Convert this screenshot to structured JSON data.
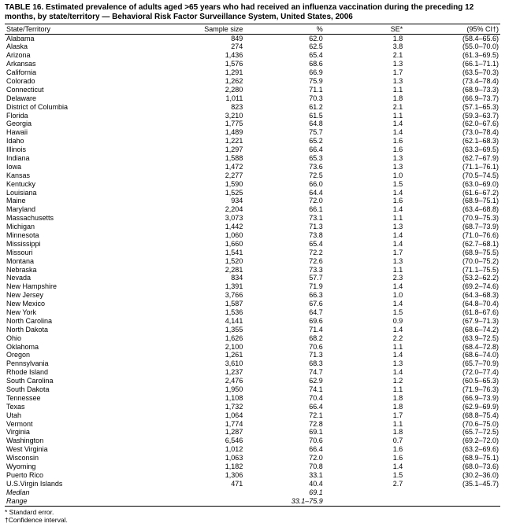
{
  "title": "TABLE 16. Estimated prevalence of adults aged >65 years who had received an influenza vaccination during the preceding 12 months, by state/territory — Behavioral Risk Factor Surveillance System, United States, 2006",
  "columns": {
    "state": "State/Territory",
    "sample": "Sample size",
    "pct": "%",
    "se": "SE*",
    "ci": "(95% CI†)"
  },
  "rows": [
    {
      "state": "Alabama",
      "sample": "849",
      "pct": "62.0",
      "se": "1.8",
      "ci": "(58.4–65.6)"
    },
    {
      "state": "Alaska",
      "sample": "274",
      "pct": "62.5",
      "se": "3.8",
      "ci": "(55.0–70.0)"
    },
    {
      "state": "Arizona",
      "sample": "1,436",
      "pct": "65.4",
      "se": "2.1",
      "ci": "(61.3–69.5)"
    },
    {
      "state": "Arkansas",
      "sample": "1,576",
      "pct": "68.6",
      "se": "1.3",
      "ci": "(66.1–71.1)"
    },
    {
      "state": "California",
      "sample": "1,291",
      "pct": "66.9",
      "se": "1.7",
      "ci": "(63.5–70.3)"
    },
    {
      "state": "Colorado",
      "sample": "1,262",
      "pct": "75.9",
      "se": "1.3",
      "ci": "(73.4–78.4)"
    },
    {
      "state": "Connecticut",
      "sample": "2,280",
      "pct": "71.1",
      "se": "1.1",
      "ci": "(68.9–73.3)"
    },
    {
      "state": "Delaware",
      "sample": "1,011",
      "pct": "70.3",
      "se": "1.8",
      "ci": "(66.9–73.7)"
    },
    {
      "state": "District of Columbia",
      "sample": "823",
      "pct": "61.2",
      "se": "2.1",
      "ci": "(57.1–65.3)"
    },
    {
      "state": "Florida",
      "sample": "3,210",
      "pct": "61.5",
      "se": "1.1",
      "ci": "(59.3–63.7)"
    },
    {
      "state": "Georgia",
      "sample": "1,775",
      "pct": "64.8",
      "se": "1.4",
      "ci": "(62.0–67.6)"
    },
    {
      "state": "Hawaii",
      "sample": "1,489",
      "pct": "75.7",
      "se": "1.4",
      "ci": "(73.0–78.4)"
    },
    {
      "state": "Idaho",
      "sample": "1,221",
      "pct": "65.2",
      "se": "1.6",
      "ci": "(62.1–68.3)"
    },
    {
      "state": "Illinois",
      "sample": "1,297",
      "pct": "66.4",
      "se": "1.6",
      "ci": "(63.3–69.5)"
    },
    {
      "state": "Indiana",
      "sample": "1,588",
      "pct": "65.3",
      "se": "1.3",
      "ci": "(62.7–67.9)"
    },
    {
      "state": "Iowa",
      "sample": "1,472",
      "pct": "73.6",
      "se": "1.3",
      "ci": "(71.1–76.1)"
    },
    {
      "state": "Kansas",
      "sample": "2,277",
      "pct": "72.5",
      "se": "1.0",
      "ci": "(70.5–74.5)"
    },
    {
      "state": "Kentucky",
      "sample": "1,590",
      "pct": "66.0",
      "se": "1.5",
      "ci": "(63.0–69.0)"
    },
    {
      "state": "Louisiana",
      "sample": "1,525",
      "pct": "64.4",
      "se": "1.4",
      "ci": "(61.6–67.2)"
    },
    {
      "state": "Maine",
      "sample": "934",
      "pct": "72.0",
      "se": "1.6",
      "ci": "(68.9–75.1)"
    },
    {
      "state": "Maryland",
      "sample": "2,204",
      "pct": "66.1",
      "se": "1.4",
      "ci": "(63.4–68.8)"
    },
    {
      "state": "Massachusetts",
      "sample": "3,073",
      "pct": "73.1",
      "se": "1.1",
      "ci": "(70.9–75.3)"
    },
    {
      "state": "Michigan",
      "sample": "1,442",
      "pct": "71.3",
      "se": "1.3",
      "ci": "(68.7–73.9)"
    },
    {
      "state": "Minnesota",
      "sample": "1,060",
      "pct": "73.8",
      "se": "1.4",
      "ci": "(71.0–76.6)"
    },
    {
      "state": "Mississippi",
      "sample": "1,660",
      "pct": "65.4",
      "se": "1.4",
      "ci": "(62.7–68.1)"
    },
    {
      "state": "Missouri",
      "sample": "1,541",
      "pct": "72.2",
      "se": "1.7",
      "ci": "(68.9–75.5)"
    },
    {
      "state": "Montana",
      "sample": "1,520",
      "pct": "72.6",
      "se": "1.3",
      "ci": "(70.0–75.2)"
    },
    {
      "state": "Nebraska",
      "sample": "2,281",
      "pct": "73.3",
      "se": "1.1",
      "ci": "(71.1–75.5)"
    },
    {
      "state": "Nevada",
      "sample": "834",
      "pct": "57.7",
      "se": "2.3",
      "ci": "(53.2–62.2)"
    },
    {
      "state": "New Hampshire",
      "sample": "1,391",
      "pct": "71.9",
      "se": "1.4",
      "ci": "(69.2–74.6)"
    },
    {
      "state": "New Jersey",
      "sample": "3,766",
      "pct": "66.3",
      "se": "1.0",
      "ci": "(64.3–68.3)"
    },
    {
      "state": "New Mexico",
      "sample": "1,587",
      "pct": "67.6",
      "se": "1.4",
      "ci": "(64.8–70.4)"
    },
    {
      "state": "New York",
      "sample": "1,536",
      "pct": "64.7",
      "se": "1.5",
      "ci": "(61.8–67.6)"
    },
    {
      "state": "North Carolina",
      "sample": "4,141",
      "pct": "69.6",
      "se": "0.9",
      "ci": "(67.9–71.3)"
    },
    {
      "state": "North Dakota",
      "sample": "1,355",
      "pct": "71.4",
      "se": "1.4",
      "ci": "(68.6–74.2)"
    },
    {
      "state": "Ohio",
      "sample": "1,626",
      "pct": "68.2",
      "se": "2.2",
      "ci": "(63.9–72.5)"
    },
    {
      "state": "Oklahoma",
      "sample": "2,100",
      "pct": "70.6",
      "se": "1.1",
      "ci": "(68.4–72.8)"
    },
    {
      "state": "Oregon",
      "sample": "1,261",
      "pct": "71.3",
      "se": "1.4",
      "ci": "(68.6–74.0)"
    },
    {
      "state": "Pennsylvania",
      "sample": "3,610",
      "pct": "68.3",
      "se": "1.3",
      "ci": "(65.7–70.9)"
    },
    {
      "state": "Rhode Island",
      "sample": "1,237",
      "pct": "74.7",
      "se": "1.4",
      "ci": "(72.0–77.4)"
    },
    {
      "state": "South Carolina",
      "sample": "2,476",
      "pct": "62.9",
      "se": "1.2",
      "ci": "(60.5–65.3)"
    },
    {
      "state": "South Dakota",
      "sample": "1,950",
      "pct": "74.1",
      "se": "1.1",
      "ci": "(71.9–76.3)"
    },
    {
      "state": "Tennessee",
      "sample": "1,108",
      "pct": "70.4",
      "se": "1.8",
      "ci": "(66.9–73.9)"
    },
    {
      "state": "Texas",
      "sample": "1,732",
      "pct": "66.4",
      "se": "1.8",
      "ci": "(62.9–69.9)"
    },
    {
      "state": "Utah",
      "sample": "1,064",
      "pct": "72.1",
      "se": "1.7",
      "ci": "(68.8–75.4)"
    },
    {
      "state": "Vermont",
      "sample": "1,774",
      "pct": "72.8",
      "se": "1.1",
      "ci": "(70.6–75.0)"
    },
    {
      "state": "Virginia",
      "sample": "1,287",
      "pct": "69.1",
      "se": "1.8",
      "ci": "(65.7–72.5)"
    },
    {
      "state": "Washington",
      "sample": "6,546",
      "pct": "70.6",
      "se": "0.7",
      "ci": "(69.2–72.0)"
    },
    {
      "state": "West Virginia",
      "sample": "1,012",
      "pct": "66.4",
      "se": "1.6",
      "ci": "(63.2–69.6)"
    },
    {
      "state": "Wisconsin",
      "sample": "1,063",
      "pct": "72.0",
      "se": "1.6",
      "ci": "(68.9–75.1)"
    },
    {
      "state": "Wyoming",
      "sample": "1,182",
      "pct": "70.8",
      "se": "1.4",
      "ci": "(68.0–73.6)"
    },
    {
      "state": "Puerto Rico",
      "sample": "1,306",
      "pct": "33.1",
      "se": "1.5",
      "ci": "(30.2–36.0)"
    },
    {
      "state": "U.S.Virgin Islands",
      "sample": "471",
      "pct": "40.4",
      "se": "2.7",
      "ci": "(35.1–45.7)"
    }
  ],
  "median": {
    "label": "Median",
    "pct": "69.1"
  },
  "range": {
    "label": "Range",
    "pct": "33.1–75.9"
  },
  "footnotes": [
    "* Standard error.",
    "†Confidence interval."
  ]
}
